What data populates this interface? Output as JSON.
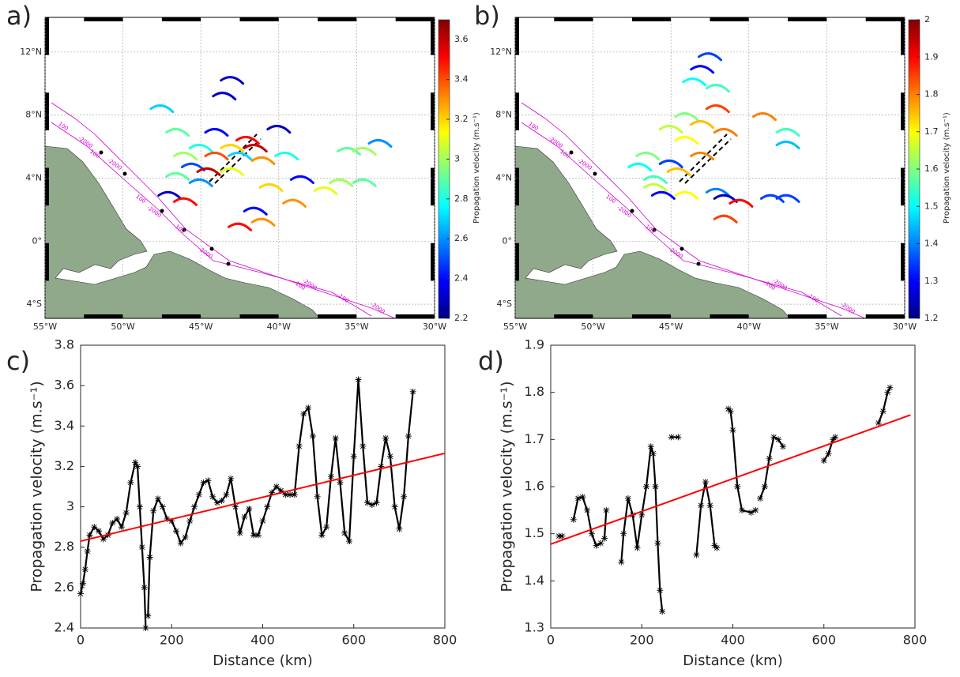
{
  "chart_data": [
    {
      "type": "map",
      "panel_label": "a)",
      "xlim": [
        -55,
        -30
      ],
      "ylim": [
        -4.9,
        14.2
      ],
      "xticks": [
        {
          "value": -55,
          "label": "55°W"
        },
        {
          "value": -50,
          "label": "50°W"
        },
        {
          "value": -45,
          "label": "45°W"
        },
        {
          "value": -40,
          "label": "40°W"
        },
        {
          "value": -35,
          "label": "35°W"
        },
        {
          "value": -30,
          "label": "30°W"
        }
      ],
      "yticks": [
        {
          "value": 12,
          "label": "12°N"
        },
        {
          "value": 8,
          "label": "8°N"
        },
        {
          "value": 4,
          "label": "4°N"
        },
        {
          "value": 0,
          "label": "0°"
        },
        {
          "value": -4,
          "label": "4°S"
        }
      ],
      "grid": true,
      "contour_labels": [
        "-2000",
        "100"
      ],
      "colorbar": {
        "label": "Propagation velocity (m.s⁻¹)",
        "clim": [
          2.2,
          3.7
        ],
        "ticks": [
          2.2,
          2.4,
          2.6,
          2.8,
          3,
          3.2,
          3.4,
          3.6
        ],
        "colormap": "jet"
      },
      "arcs": [
        {
          "lon": -43,
          "lat": 10.3,
          "value": 2.3
        },
        {
          "lon": -43.5,
          "lat": 9.3,
          "value": 2.3
        },
        {
          "lon": -47.5,
          "lat": 8.5,
          "value": 2.7
        },
        {
          "lon": -46.5,
          "lat": 7,
          "value": 2.9
        },
        {
          "lon": -44,
          "lat": 7,
          "value": 2.4
        },
        {
          "lon": -42,
          "lat": 6.5,
          "value": 3.5
        },
        {
          "lon": -43,
          "lat": 6,
          "value": 3.2
        },
        {
          "lon": -45,
          "lat": 6,
          "value": 2.8
        },
        {
          "lon": -46,
          "lat": 5.5,
          "value": 3.0
        },
        {
          "lon": -44,
          "lat": 5.5,
          "value": 3.4
        },
        {
          "lon": -42.5,
          "lat": 5.5,
          "value": 2.7
        },
        {
          "lon": -41,
          "lat": 5.2,
          "value": 3.3
        },
        {
          "lon": -45.5,
          "lat": 4.8,
          "value": 2.5
        },
        {
          "lon": -44.5,
          "lat": 4.5,
          "value": 3.6
        },
        {
          "lon": -43,
          "lat": 4.5,
          "value": 3.1
        },
        {
          "lon": -46.5,
          "lat": 4.2,
          "value": 2.9
        },
        {
          "lon": -45,
          "lat": 3.8,
          "value": 2.6
        },
        {
          "lon": -47,
          "lat": 3,
          "value": 2.3
        },
        {
          "lon": -46,
          "lat": 2.6,
          "value": 3.5
        },
        {
          "lon": -41.5,
          "lat": 6,
          "value": 3.6
        },
        {
          "lon": -40,
          "lat": 7.2,
          "value": 2.3
        },
        {
          "lon": -39.5,
          "lat": 5.5,
          "value": 2.8
        },
        {
          "lon": -38.5,
          "lat": 4,
          "value": 2.4
        },
        {
          "lon": -40.5,
          "lat": 3.5,
          "value": 3.2
        },
        {
          "lon": -39,
          "lat": 2.5,
          "value": 3.3
        },
        {
          "lon": -41.5,
          "lat": 2,
          "value": 2.4
        },
        {
          "lon": -42.5,
          "lat": 1,
          "value": 3.5
        },
        {
          "lon": -35.5,
          "lat": 5.8,
          "value": 2.9
        },
        {
          "lon": -34.5,
          "lat": 5.8,
          "value": 3.0
        },
        {
          "lon": -33.5,
          "lat": 6.3,
          "value": 2.6
        },
        {
          "lon": -36,
          "lat": 3.8,
          "value": 3.0
        },
        {
          "lon": -34.5,
          "lat": 3.8,
          "value": 2.9
        },
        {
          "lon": -37,
          "lat": 3.3,
          "value": 3.1
        },
        {
          "lon": -41,
          "lat": 1.3,
          "value": 3.3
        }
      ]
    },
    {
      "type": "map",
      "panel_label": "b)",
      "xlim": [
        -55,
        -30
      ],
      "ylim": [
        -4.9,
        14.2
      ],
      "xticks": [
        {
          "value": -55,
          "label": "55°W"
        },
        {
          "value": -50,
          "label": "50°W"
        },
        {
          "value": -45,
          "label": "45°W"
        },
        {
          "value": -40,
          "label": "40°W"
        },
        {
          "value": -35,
          "label": "35°W"
        },
        {
          "value": -30,
          "label": "30°W"
        }
      ],
      "yticks": [
        {
          "value": 12,
          "label": "12°N"
        },
        {
          "value": 8,
          "label": "8°N"
        },
        {
          "value": 4,
          "label": "4°N"
        },
        {
          "value": 0,
          "label": "0°"
        },
        {
          "value": -4,
          "label": "4°S"
        }
      ],
      "grid": true,
      "contour_labels": [
        "-2000",
        "100"
      ],
      "colorbar": {
        "label": "Propagation velocity (m.s⁻¹)",
        "clim": [
          1.2,
          2
        ],
        "ticks": [
          1.2,
          1.3,
          1.4,
          1.5,
          1.6,
          1.7,
          1.8,
          1.9,
          2
        ],
        "colormap": "jet"
      },
      "arcs": [
        {
          "lon": -42.5,
          "lat": 11.8,
          "value": 1.35
        },
        {
          "lon": -43,
          "lat": 11,
          "value": 1.3
        },
        {
          "lon": -43.5,
          "lat": 10.2,
          "value": 1.5
        },
        {
          "lon": -42,
          "lat": 9.8,
          "value": 1.55
        },
        {
          "lon": -42,
          "lat": 8.5,
          "value": 1.85
        },
        {
          "lon": -44,
          "lat": 8,
          "value": 1.6
        },
        {
          "lon": -43,
          "lat": 7.5,
          "value": 1.75
        },
        {
          "lon": -41.5,
          "lat": 7,
          "value": 1.8
        },
        {
          "lon": -45,
          "lat": 7.2,
          "value": 1.65
        },
        {
          "lon": -44,
          "lat": 6.5,
          "value": 1.7
        },
        {
          "lon": -46.5,
          "lat": 5.5,
          "value": 1.6
        },
        {
          "lon": -45,
          "lat": 5,
          "value": 1.35
        },
        {
          "lon": -43,
          "lat": 5.5,
          "value": 1.8
        },
        {
          "lon": -44.5,
          "lat": 4.5,
          "value": 1.75
        },
        {
          "lon": -46,
          "lat": 4,
          "value": 1.55
        },
        {
          "lon": -45.5,
          "lat": 3,
          "value": 1.3
        },
        {
          "lon": -44,
          "lat": 3,
          "value": 1.7
        },
        {
          "lon": -42,
          "lat": 3.2,
          "value": 1.4
        },
        {
          "lon": -41.5,
          "lat": 2.8,
          "value": 1.25
        },
        {
          "lon": -40.5,
          "lat": 2.5,
          "value": 1.9
        },
        {
          "lon": -41.5,
          "lat": 1.5,
          "value": 1.85
        },
        {
          "lon": -39,
          "lat": 8,
          "value": 1.8
        },
        {
          "lon": -37.5,
          "lat": 7,
          "value": 1.55
        },
        {
          "lon": -37.5,
          "lat": 6.2,
          "value": 1.45
        },
        {
          "lon": -38.5,
          "lat": 2.8,
          "value": 1.35
        },
        {
          "lon": -37.5,
          "lat": 2.8,
          "value": 1.35
        },
        {
          "lon": -47,
          "lat": 4.8,
          "value": 1.5
        },
        {
          "lon": -46,
          "lat": 3.5,
          "value": 1.65
        }
      ]
    },
    {
      "type": "line",
      "panel_label": "c)",
      "xlabel": "Distance (km)",
      "ylabel": "Propagation velocity (m.s⁻¹)",
      "xlim": [
        0,
        800
      ],
      "ylim": [
        2.4,
        3.8
      ],
      "xticks": [
        0,
        200,
        400,
        600,
        800
      ],
      "yticks": [
        2.4,
        2.6,
        2.8,
        3,
        3.2,
        3.4,
        3.6,
        3.8
      ],
      "series": [
        {
          "color": "#000000",
          "marker": "*",
          "x": [
            0,
            5,
            10,
            15,
            20,
            30,
            40,
            50,
            60,
            70,
            80,
            90,
            100,
            110,
            120,
            125,
            130,
            135,
            140,
            143,
            null,
            148,
            152,
            160,
            170,
            180,
            190,
            200,
            210,
            220,
            230,
            240,
            250,
            260,
            270,
            280,
            290,
            300,
            310,
            320,
            330,
            340,
            350,
            360,
            370,
            380,
            390,
            400,
            410,
            420,
            430,
            440,
            450,
            460,
            470,
            480,
            490,
            500,
            510,
            520,
            530,
            540,
            550,
            560,
            570,
            580,
            590,
            600,
            610,
            620,
            630,
            640,
            650,
            660,
            670,
            680,
            690,
            700,
            710,
            720,
            730
          ],
          "values": [
            2.57,
            2.62,
            2.69,
            2.78,
            2.86,
            2.9,
            2.88,
            2.84,
            2.86,
            2.92,
            2.94,
            2.9,
            2.97,
            3.12,
            3.22,
            3.2,
            3.0,
            2.8,
            2.6,
            2.4,
            null,
            2.46,
            2.75,
            2.98,
            3.04,
            3.0,
            2.94,
            2.93,
            2.88,
            2.82,
            2.85,
            2.93,
            3.0,
            3.06,
            3.12,
            3.13,
            3.05,
            3.02,
            3.03,
            3.06,
            3.14,
            3.0,
            2.87,
            2.95,
            2.99,
            2.86,
            2.86,
            2.93,
            3.0,
            3.07,
            3.1,
            3.08,
            3.06,
            3.06,
            3.06,
            3.3,
            3.46,
            3.49,
            3.35,
            3.05,
            2.86,
            2.9,
            3.15,
            3.34,
            3.12,
            2.87,
            2.83,
            3.25,
            3.63,
            3.3,
            3.02,
            3.01,
            3.02,
            3.2,
            3.34,
            3.25,
            3.0,
            2.89,
            3.05,
            3.35,
            3.57
          ]
        },
        {
          "color": "#ff0000",
          "x": [
            0,
            800
          ],
          "values": [
            2.83,
            3.265
          ]
        }
      ]
    },
    {
      "type": "line",
      "panel_label": "d)",
      "xlabel": "Distance (km)",
      "ylabel": "Propagation velocity (m.s⁻¹)",
      "xlim": [
        0,
        800
      ],
      "ylim": [
        1.3,
        1.9
      ],
      "xticks": [
        0,
        200,
        400,
        600,
        800
      ],
      "yticks": [
        1.3,
        1.4,
        1.5,
        1.6,
        1.7,
        1.8,
        1.9
      ],
      "series": [
        {
          "color": "#000000",
          "marker": "*",
          "x": [
            18,
            25,
            null,
            50,
            60,
            70,
            80,
            90,
            100,
            110,
            null,
            118,
            122,
            null,
            155,
            160,
            170,
            180,
            190,
            200,
            210,
            220,
            225,
            230,
            235,
            240,
            245,
            null,
            265,
            280,
            null,
            320,
            330,
            340,
            350,
            360,
            365,
            null,
            390,
            395,
            400,
            410,
            420,
            440,
            450,
            null,
            460,
            470,
            480,
            490,
            500,
            510,
            null,
            600,
            610,
            620,
            625,
            null,
            720,
            730,
            740,
            745
          ],
          "values": [
            1.495,
            1.495,
            null,
            1.53,
            1.575,
            1.578,
            1.55,
            1.5,
            1.475,
            1.48,
            null,
            1.49,
            1.55,
            null,
            1.44,
            1.5,
            1.575,
            1.54,
            1.47,
            1.54,
            1.6,
            1.685,
            1.67,
            1.6,
            1.48,
            1.38,
            1.335,
            null,
            1.705,
            1.705,
            null,
            1.455,
            1.56,
            1.61,
            1.56,
            1.475,
            1.47,
            null,
            1.765,
            1.76,
            1.72,
            1.6,
            1.55,
            1.545,
            1.55,
            null,
            1.575,
            1.6,
            1.66,
            1.705,
            1.7,
            1.685,
            null,
            1.655,
            1.67,
            1.7,
            1.705,
            null,
            1.735,
            1.76,
            1.8,
            1.81
          ]
        },
        {
          "color": "#ff0000",
          "x": [
            0,
            790
          ],
          "values": [
            1.478,
            1.752
          ]
        }
      ]
    }
  ]
}
